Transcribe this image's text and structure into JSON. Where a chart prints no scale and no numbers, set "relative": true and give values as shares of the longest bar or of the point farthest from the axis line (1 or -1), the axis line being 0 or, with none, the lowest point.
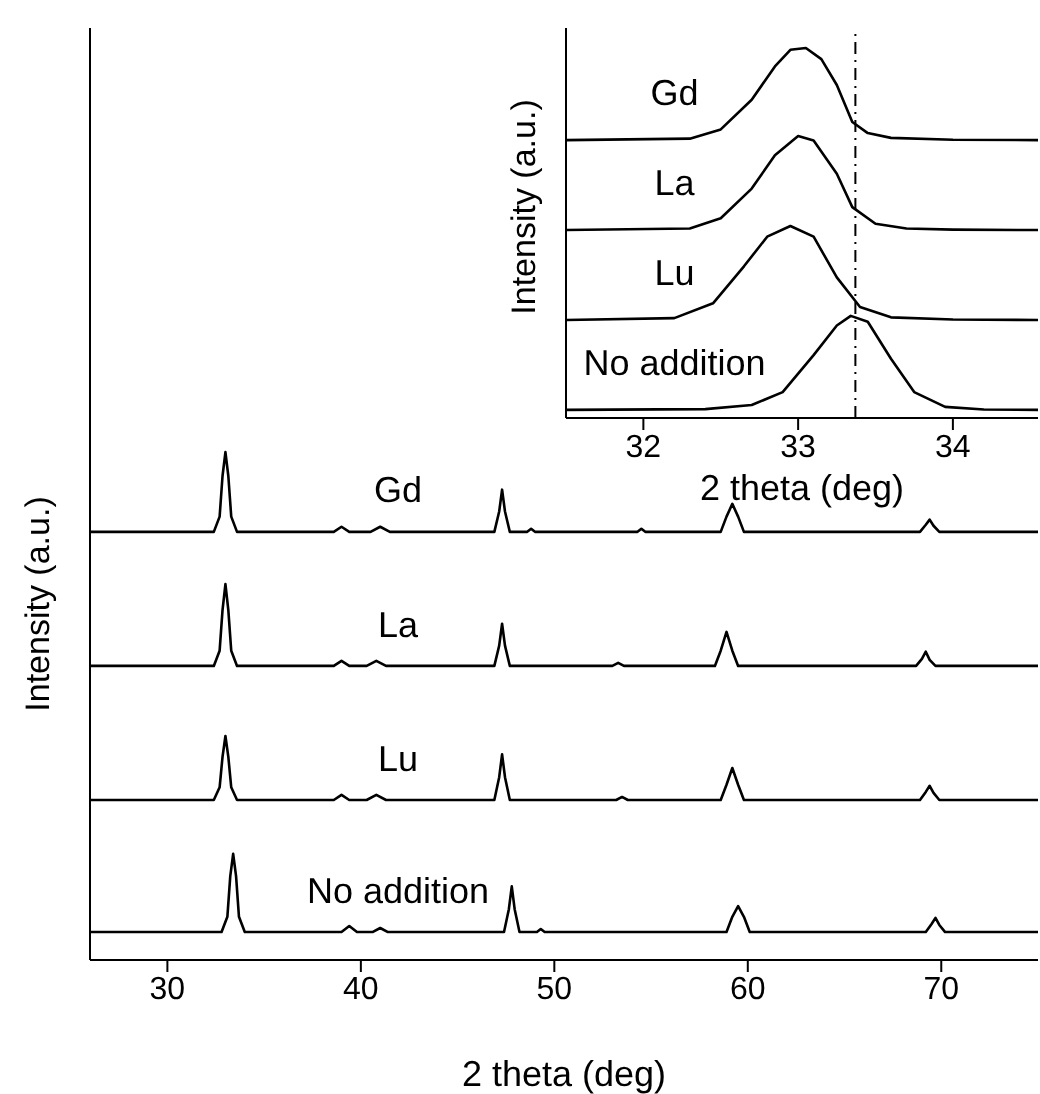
{
  "chart_data": [
    {
      "type": "line",
      "xlabel": "2 theta (deg)",
      "ylabel": "Intensity (a.u.)",
      "relative": true,
      "xlim": [
        26,
        75
      ],
      "xticks": [
        30,
        40,
        50,
        60,
        70
      ],
      "tick_labels": "x",
      "legend": false,
      "grid": false,
      "series": [
        {
          "name": "Gd",
          "color": "#000000",
          "x": [
            26,
            32.4,
            32.7,
            32.85,
            33.0,
            33.15,
            33.3,
            33.6,
            38.6,
            39.0,
            39.4,
            40.5,
            41.0,
            41.5,
            46.9,
            47.15,
            47.3,
            47.45,
            47.7,
            48.6,
            48.8,
            49.0,
            54.3,
            54.5,
            54.7,
            58.6,
            58.9,
            59.2,
            59.5,
            59.8,
            68.9,
            69.2,
            69.4,
            69.6,
            69.9,
            75
          ],
          "values": [
            0.843,
            0.843,
            0.873,
            0.953,
            1.0,
            0.953,
            0.873,
            0.843,
            0.843,
            0.853,
            0.843,
            0.843,
            0.853,
            0.843,
            0.843,
            0.883,
            0.926,
            0.883,
            0.843,
            0.843,
            0.849,
            0.843,
            0.843,
            0.849,
            0.843,
            0.843,
            0.873,
            0.898,
            0.873,
            0.843,
            0.843,
            0.857,
            0.867,
            0.855,
            0.843,
            0.843
          ]
        },
        {
          "name": "La",
          "color": "#000000",
          "x": [
            26,
            32.4,
            32.7,
            32.85,
            33.0,
            33.15,
            33.3,
            33.6,
            38.6,
            39.0,
            39.4,
            40.3,
            40.8,
            41.3,
            46.9,
            47.15,
            47.3,
            47.45,
            47.7,
            53.0,
            53.3,
            53.6,
            58.3,
            58.6,
            58.9,
            59.2,
            59.5,
            68.7,
            69.0,
            69.2,
            69.4,
            69.7,
            75
          ],
          "values": [
            0.579,
            0.579,
            0.609,
            0.689,
            0.74,
            0.689,
            0.609,
            0.579,
            0.579,
            0.589,
            0.579,
            0.579,
            0.589,
            0.579,
            0.579,
            0.619,
            0.662,
            0.619,
            0.579,
            0.579,
            0.585,
            0.579,
            0.579,
            0.609,
            0.646,
            0.609,
            0.579,
            0.579,
            0.593,
            0.607,
            0.591,
            0.579,
            0.579
          ]
        },
        {
          "name": "Lu",
          "color": "#000000",
          "x": [
            26,
            32.4,
            32.7,
            32.85,
            33.0,
            33.15,
            33.3,
            33.6,
            38.6,
            39.0,
            39.4,
            40.3,
            40.8,
            41.3,
            46.9,
            47.15,
            47.3,
            47.45,
            47.7,
            53.2,
            53.5,
            53.8,
            58.6,
            58.9,
            59.2,
            59.5,
            59.8,
            68.9,
            69.2,
            69.4,
            69.6,
            69.9,
            75
          ],
          "values": [
            0.315,
            0.315,
            0.34,
            0.4,
            0.441,
            0.4,
            0.34,
            0.315,
            0.315,
            0.325,
            0.315,
            0.315,
            0.325,
            0.315,
            0.315,
            0.36,
            0.405,
            0.36,
            0.315,
            0.315,
            0.321,
            0.315,
            0.315,
            0.345,
            0.378,
            0.345,
            0.315,
            0.315,
            0.331,
            0.343,
            0.329,
            0.315,
            0.315
          ]
        },
        {
          "name": "No addition",
          "color": "#000000",
          "x": [
            26,
            32.8,
            33.1,
            33.25,
            33.4,
            33.55,
            33.7,
            34.0,
            39.0,
            39.4,
            39.8,
            40.6,
            41.0,
            41.4,
            47.4,
            47.65,
            47.8,
            47.95,
            48.2,
            49.1,
            49.3,
            49.5,
            58.9,
            59.2,
            59.5,
            59.8,
            60.1,
            69.2,
            69.5,
            69.7,
            69.9,
            70.2,
            75
          ],
          "values": [
            0.055,
            0.055,
            0.085,
            0.165,
            0.209,
            0.165,
            0.085,
            0.055,
            0.055,
            0.067,
            0.055,
            0.055,
            0.063,
            0.055,
            0.055,
            0.1,
            0.145,
            0.1,
            0.055,
            0.055,
            0.061,
            0.055,
            0.055,
            0.085,
            0.106,
            0.085,
            0.055,
            0.055,
            0.071,
            0.083,
            0.069,
            0.055,
            0.055
          ]
        }
      ]
    },
    {
      "type": "line",
      "xlabel": "2 theta (deg)",
      "ylabel": "Intensity (a.u.)",
      "relative": true,
      "xlim": [
        31.5,
        34.55
      ],
      "xticks": [
        32,
        33,
        34
      ],
      "tick_labels": "x",
      "legend": false,
      "grid": false,
      "ref_lines": [
        {
          "axis": "x",
          "value": 33.37,
          "label": null,
          "color": "#000000",
          "line_style": "dashed"
        }
      ],
      "series": [
        {
          "name": "Gd",
          "color": "#000000",
          "x": [
            31.5,
            32.3,
            32.5,
            32.7,
            32.85,
            32.95,
            33.05,
            33.15,
            33.25,
            33.35,
            33.45,
            33.6,
            34.0,
            34.55
          ],
          "values": [
            0.751,
            0.755,
            0.78,
            0.86,
            0.95,
            0.995,
            1.0,
            0.97,
            0.9,
            0.8,
            0.77,
            0.757,
            0.752,
            0.751
          ]
        },
        {
          "name": "La",
          "color": "#000000",
          "x": [
            31.5,
            32.3,
            32.5,
            32.7,
            32.85,
            33.0,
            33.1,
            33.25,
            33.35,
            33.5,
            33.7,
            34.0,
            34.55
          ],
          "values": [
            0.508,
            0.512,
            0.54,
            0.62,
            0.71,
            0.762,
            0.75,
            0.66,
            0.57,
            0.525,
            0.512,
            0.509,
            0.508
          ]
        },
        {
          "name": "Lu",
          "color": "#000000",
          "x": [
            31.5,
            32.2,
            32.45,
            32.65,
            32.8,
            32.95,
            33.1,
            33.25,
            33.4,
            33.6,
            34.0,
            34.55
          ],
          "values": [
            0.265,
            0.27,
            0.31,
            0.41,
            0.49,
            0.519,
            0.49,
            0.38,
            0.3,
            0.272,
            0.266,
            0.265
          ]
        },
        {
          "name": "No addition",
          "color": "#000000",
          "x": [
            31.5,
            32.4,
            32.7,
            32.9,
            33.1,
            33.25,
            33.34,
            33.45,
            33.6,
            33.75,
            33.95,
            34.2,
            34.55
          ],
          "values": [
            0.022,
            0.024,
            0.035,
            0.07,
            0.17,
            0.25,
            0.276,
            0.26,
            0.16,
            0.07,
            0.03,
            0.023,
            0.022
          ]
        }
      ]
    }
  ]
}
